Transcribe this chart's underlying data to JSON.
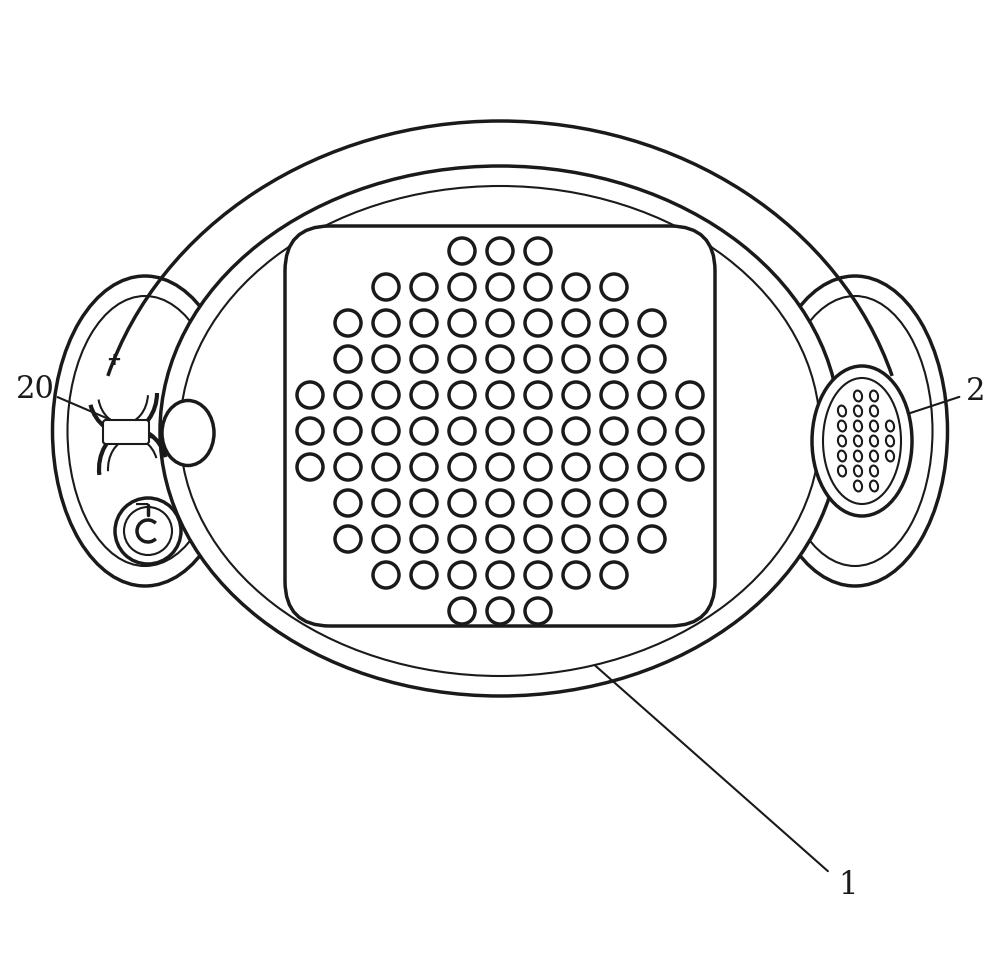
{
  "bg_color": "#ffffff",
  "line_color": "#1a1a1a",
  "lw_main": 2.5,
  "lw_thin": 1.5,
  "lw_thick": 3.0,
  "fig_width": 10.0,
  "fig_height": 9.62,
  "label_1": "1",
  "label_2": "2",
  "label_20": "20",
  "font_size": 22
}
